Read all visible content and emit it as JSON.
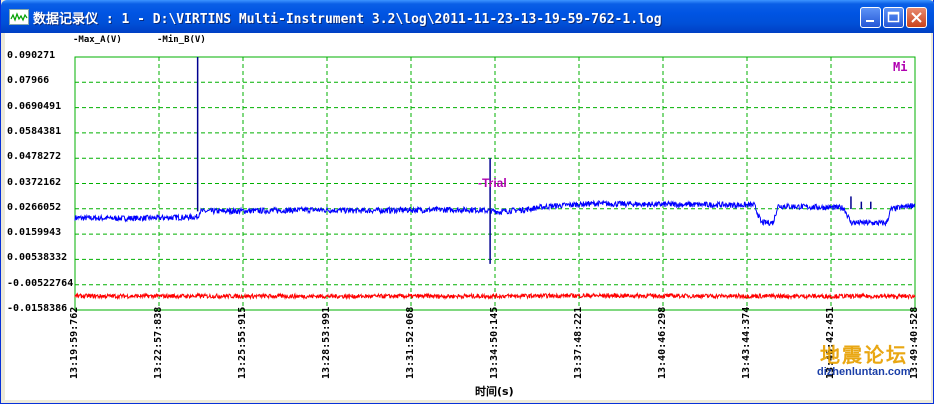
{
  "window": {
    "title": "数据记录仪 : 1 - D:\\VIRTINS Multi-Instrument 3.2\\log\\2011-11-23-13-19-59-762-1.log"
  },
  "colors": {
    "series_a": "#0000ff",
    "series_b": "#ff0000",
    "grid": "#00b000",
    "annotation": "#b000b0"
  },
  "plot": {
    "legend": [
      {
        "label": "-Max_A(V)",
        "color": "#000080"
      },
      {
        "label": "-Min_B(V)",
        "color": "#cc0000"
      }
    ],
    "corner_label": "Mi",
    "annotation": "-Trial",
    "xlabel": "时间(s)",
    "watermark": {
      "cn": "地震论坛",
      "url": "dizhenluntan.com"
    }
  },
  "chart_data": {
    "type": "line",
    "xlabel": "时间(s)",
    "ylabel": "",
    "ylim": [
      -0.0158386,
      0.090271
    ],
    "yticks": [
      "0.090271",
      "0.07966",
      "0.0690491",
      "0.0584381",
      "0.0478272",
      "0.0372162",
      "0.0266052",
      "0.0159943",
      "0.00538332",
      "-0.00522764",
      "-0.0158386"
    ],
    "xticks": [
      "13:19:59:762",
      "13:22:57:838",
      "13:25:55:915",
      "13:28:53:991",
      "13:31:52:068",
      "13:34:50:145",
      "13:37:48:221",
      "13:40:46:298",
      "13:43:44:374",
      "13:46:42:451",
      "13:49:40:528"
    ],
    "x_range_s": [
      0,
      1780.766
    ],
    "grid": true,
    "legend_position": "top-left",
    "series": [
      {
        "name": "Max_A(V)",
        "color": "#0000ff",
        "points": [
          [
            0,
            0.0228
          ],
          [
            100,
            0.0226
          ],
          [
            180,
            0.0228
          ],
          [
            260,
            0.0232
          ],
          [
            265,
            0.0255
          ],
          [
            300,
            0.0256
          ],
          [
            400,
            0.0258
          ],
          [
            500,
            0.0262
          ],
          [
            600,
            0.0258
          ],
          [
            700,
            0.0261
          ],
          [
            800,
            0.0262
          ],
          [
            850,
            0.0262
          ],
          [
            900,
            0.0254
          ],
          [
            950,
            0.0262
          ],
          [
            1000,
            0.0276
          ],
          [
            1060,
            0.0284
          ],
          [
            1100,
            0.0288
          ],
          [
            1200,
            0.0285
          ],
          [
            1300,
            0.0284
          ],
          [
            1400,
            0.0282
          ],
          [
            1440,
            0.0282
          ],
          [
            1455,
            0.0208
          ],
          [
            1480,
            0.0208
          ],
          [
            1490,
            0.0278
          ],
          [
            1550,
            0.0274
          ],
          [
            1630,
            0.027
          ],
          [
            1645,
            0.0208
          ],
          [
            1720,
            0.0206
          ],
          [
            1730,
            0.0264
          ],
          [
            1780,
            0.0283
          ]
        ],
        "spikes": [
          {
            "x": 260,
            "from": 0.0255,
            "to": 0.090271
          },
          {
            "x": 880,
            "from": 0.0035,
            "to": 0.0478
          },
          {
            "x": 1645,
            "from": 0.0265,
            "to": 0.0318
          },
          {
            "x": 1667,
            "from": 0.0265,
            "to": 0.0296
          },
          {
            "x": 1687,
            "from": 0.0265,
            "to": 0.0296
          }
        ],
        "noise": 0.0012
      },
      {
        "name": "Min_B(V)",
        "color": "#ff0000",
        "points": [
          [
            0,
            -0.01
          ],
          [
            300,
            -0.01
          ],
          [
            600,
            -0.0101
          ],
          [
            900,
            -0.01
          ],
          [
            1100,
            -0.0098
          ],
          [
            1400,
            -0.01
          ],
          [
            1780,
            -0.0101
          ]
        ],
        "noise": 0.0009
      }
    ],
    "annotations": [
      {
        "text": "-Trial",
        "x": 880,
        "y": 0.0372
      },
      {
        "text": "Mi"
      }
    ]
  }
}
